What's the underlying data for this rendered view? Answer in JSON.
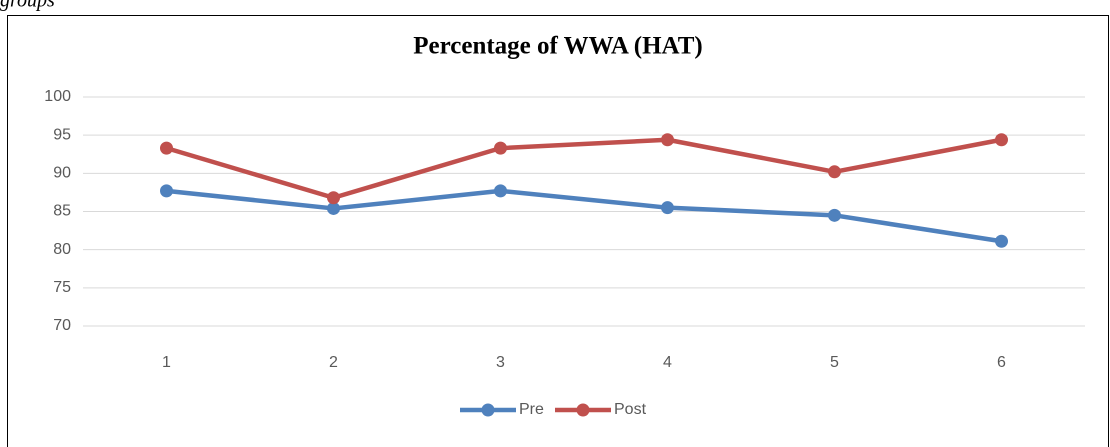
{
  "caption": "groups",
  "chart_data": {
    "type": "line",
    "title": "Percentage of WWA (HAT)",
    "categories": [
      "1",
      "2",
      "3",
      "4",
      "5",
      "6"
    ],
    "series": [
      {
        "name": "Pre",
        "color": "#4f81bd",
        "values": [
          87.7,
          85.4,
          87.7,
          85.5,
          84.5,
          81.1
        ]
      },
      {
        "name": "Post",
        "color": "#c0504d",
        "values": [
          93.3,
          86.8,
          93.3,
          94.4,
          90.2,
          94.4
        ]
      }
    ],
    "ylim": [
      70,
      100
    ],
    "yticks": [
      70,
      75,
      80,
      85,
      90,
      95,
      100
    ],
    "grid": true,
    "legend": "bottom"
  }
}
